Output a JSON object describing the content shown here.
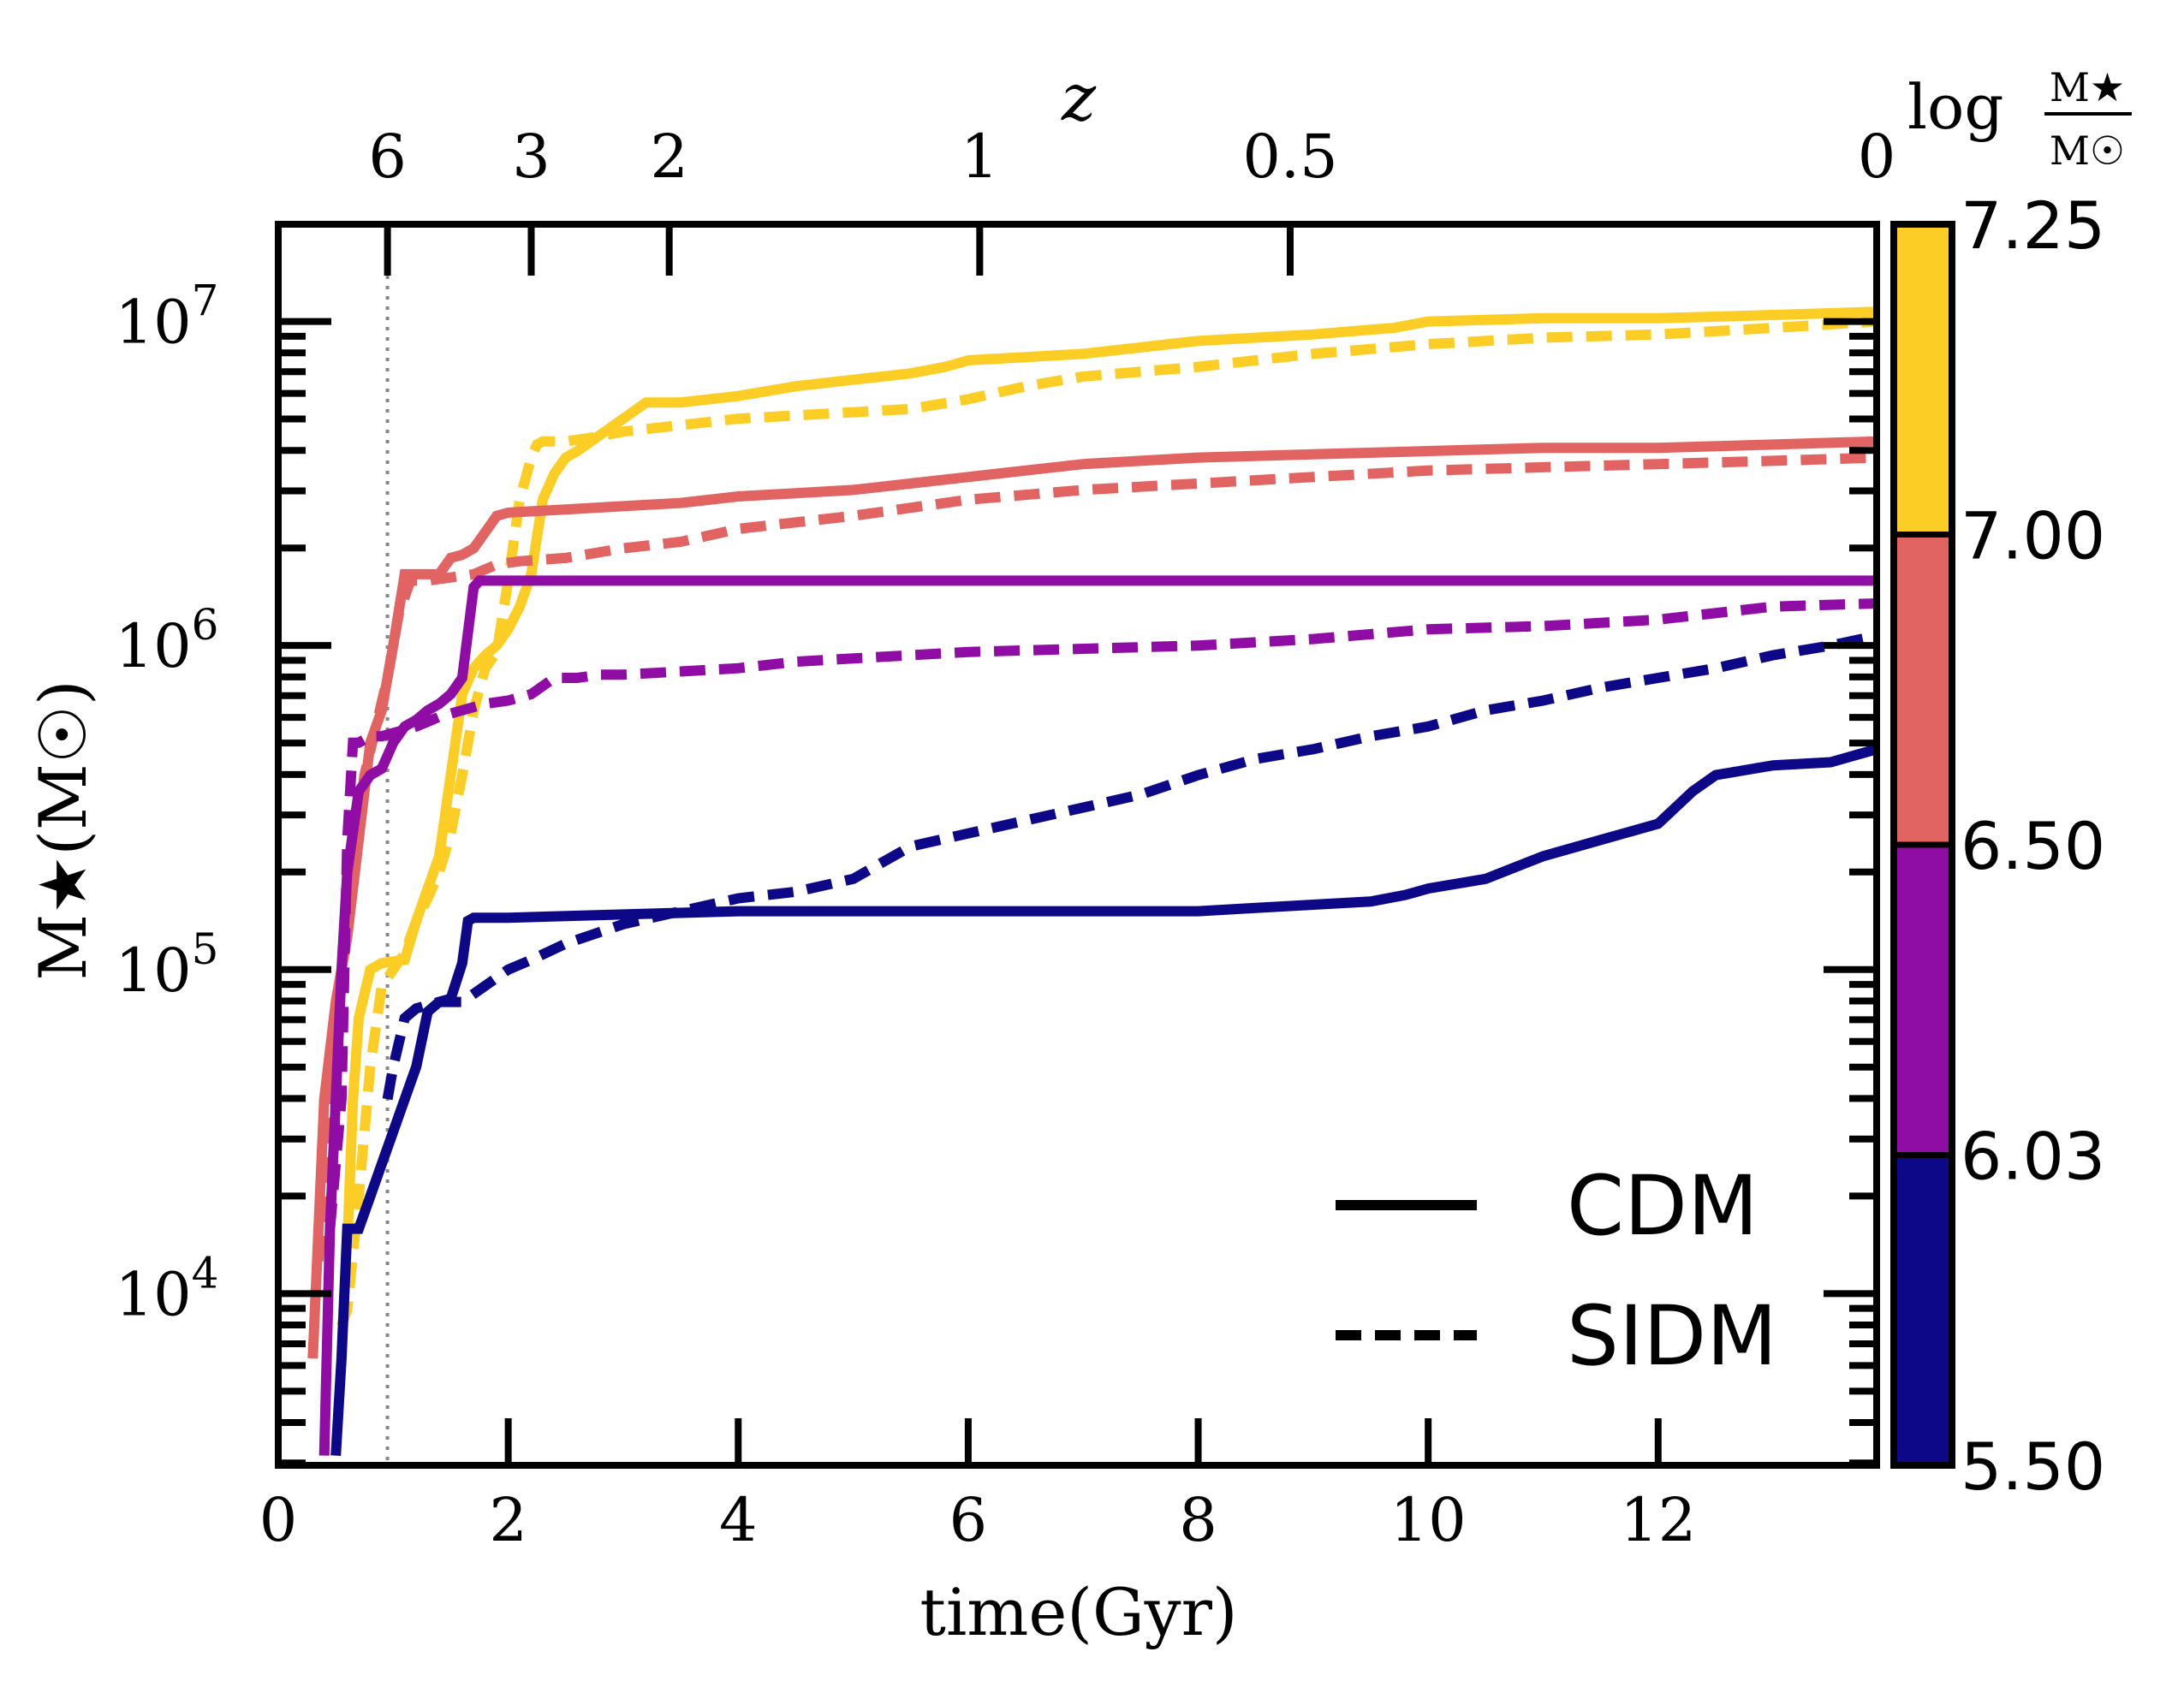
{
  "chart_data": {
    "type": "line",
    "xlabel": "time(Gyr)",
    "ylabel": "M★(M☉)",
    "top_axis_label": "z",
    "xlim": [
      0,
      13.9
    ],
    "ylim_log10": [
      3.47,
      7.3
    ],
    "y_scale": "log",
    "x_ticks": [
      0,
      2,
      4,
      6,
      8,
      10,
      12
    ],
    "x_tick_labels": [
      "0",
      "2",
      "4",
      "6",
      "8",
      "10",
      "12"
    ],
    "y_ticks_log10": [
      4,
      5,
      6,
      7
    ],
    "top_ticks": [
      {
        "label": "6",
        "time": 0.95
      },
      {
        "label": "3",
        "time": 2.2
      },
      {
        "label": "2",
        "time": 3.4
      },
      {
        "label": "1",
        "time": 6.1
      },
      {
        "label": "0.5",
        "time": 8.8
      },
      {
        "label": "0",
        "time": 13.9
      }
    ],
    "reionization_marker_time": 0.95,
    "legend": {
      "position": "lower-right",
      "entries": [
        {
          "label": "CDM",
          "style": "solid"
        },
        {
          "label": "SIDM",
          "style": "dashed"
        }
      ]
    },
    "colorbar": {
      "title": "log M★/M☉",
      "title_prefix": "log",
      "title_num": "M★",
      "title_den": "M☉",
      "tick_labels": [
        "7.25",
        "7.00",
        "6.50",
        "6.03",
        "5.50"
      ],
      "segments": [
        {
          "color": "#fcce25",
          "from": "7.00",
          "to": "7.25"
        },
        {
          "color": "#e16462",
          "from": "6.50",
          "to": "7.00"
        },
        {
          "color": "#8f0da4",
          "from": "6.03",
          "to": "6.50"
        },
        {
          "color": "#0d0887",
          "from": "5.50",
          "to": "6.03"
        }
      ]
    },
    "series": [
      {
        "name": "yellow CDM",
        "color": "#fcce25",
        "style": "solid",
        "t": [
          0.6,
          0.65,
          0.7,
          0.8,
          0.9,
          1.1,
          1.2,
          1.3,
          1.4,
          1.5,
          1.6,
          1.7,
          1.8,
          1.9,
          2.0,
          2.1,
          2.2,
          2.3,
          2.4,
          2.5,
          2.6,
          2.8,
          3.0,
          3.2,
          3.5,
          4.0,
          4.5,
          5.0,
          5.5,
          5.8,
          6.0,
          6.5,
          7.0,
          7.5,
          8.0,
          9.0,
          9.7,
          10.0,
          11.0,
          12.0,
          13.0,
          13.9
        ],
        "v": [
          4.15,
          4.6,
          4.85,
          5.0,
          5.02,
          5.03,
          5.15,
          5.25,
          5.35,
          5.6,
          5.85,
          5.93,
          5.97,
          6.0,
          6.05,
          6.12,
          6.22,
          6.45,
          6.53,
          6.58,
          6.6,
          6.65,
          6.7,
          6.75,
          6.75,
          6.77,
          6.8,
          6.82,
          6.84,
          6.86,
          6.88,
          6.89,
          6.9,
          6.92,
          6.94,
          6.96,
          6.98,
          7.0,
          7.01,
          7.01,
          7.02,
          7.03
        ]
      },
      {
        "name": "yellow SIDM",
        "color": "#fcce25",
        "style": "dashed",
        "t": [
          0.55,
          0.6,
          0.7,
          0.8,
          0.9,
          1.0,
          1.1,
          1.2,
          1.3,
          1.4,
          1.5,
          1.6,
          1.7,
          1.8,
          1.9,
          2.0,
          2.1,
          2.2,
          2.25,
          2.3,
          2.5,
          2.7,
          3.0,
          3.5,
          4.0,
          4.5,
          5.0,
          5.5,
          6.0,
          6.5,
          7.0,
          8.0,
          9.0,
          10.0,
          11.0,
          12.0,
          13.0,
          13.9
        ],
        "v": [
          3.9,
          3.95,
          4.3,
          4.7,
          4.95,
          5.0,
          5.05,
          5.15,
          5.22,
          5.3,
          5.42,
          5.6,
          5.8,
          5.93,
          5.98,
          6.2,
          6.45,
          6.58,
          6.62,
          6.63,
          6.63,
          6.64,
          6.66,
          6.68,
          6.7,
          6.71,
          6.72,
          6.73,
          6.76,
          6.8,
          6.83,
          6.86,
          6.9,
          6.93,
          6.95,
          6.96,
          6.98,
          7.0
        ]
      },
      {
        "name": "salmon CDM",
        "color": "#e16462",
        "style": "solid",
        "t": [
          0.3,
          0.4,
          0.5,
          0.6,
          0.7,
          0.8,
          0.9,
          1.0,
          1.1,
          1.2,
          1.4,
          1.5,
          1.6,
          1.7,
          1.8,
          1.9,
          2.0,
          2.5,
          3.0,
          3.5,
          4.0,
          4.5,
          5.0,
          5.5,
          6.0,
          6.5,
          7.0,
          7.5,
          8.0,
          9.0,
          10.0,
          11.0,
          12.0,
          13.0,
          13.9
        ],
        "v": [
          3.8,
          4.6,
          4.9,
          5.1,
          5.4,
          5.7,
          5.8,
          6.0,
          6.22,
          6.22,
          6.22,
          6.27,
          6.28,
          6.3,
          6.35,
          6.4,
          6.41,
          6.42,
          6.43,
          6.44,
          6.46,
          6.47,
          6.48,
          6.5,
          6.52,
          6.54,
          6.56,
          6.57,
          6.58,
          6.59,
          6.6,
          6.61,
          6.61,
          6.62,
          6.63
        ]
      },
      {
        "name": "salmon SIDM",
        "color": "#e16462",
        "style": "dashed",
        "t": [
          0.35,
          0.45,
          0.55,
          0.65,
          0.75,
          0.85,
          0.95,
          1.05,
          1.15,
          1.3,
          1.5,
          1.7,
          1.9,
          2.1,
          2.5,
          3.0,
          3.5,
          4.0,
          4.5,
          5.0,
          6.0,
          7.0,
          8.0,
          9.0,
          10.0,
          11.0,
          12.0,
          13.0,
          13.9
        ],
        "v": [
          4.1,
          4.6,
          5.0,
          5.3,
          5.6,
          5.75,
          5.9,
          6.1,
          6.2,
          6.2,
          6.21,
          6.22,
          6.25,
          6.26,
          6.27,
          6.3,
          6.32,
          6.36,
          6.38,
          6.4,
          6.45,
          6.48,
          6.5,
          6.52,
          6.54,
          6.55,
          6.56,
          6.57,
          6.58
        ]
      },
      {
        "name": "purple CDM",
        "color": "#8f0da4",
        "style": "solid",
        "t": [
          0.4,
          0.45,
          0.5,
          0.55,
          0.6,
          0.7,
          0.8,
          0.9,
          1.0,
          1.1,
          1.2,
          1.3,
          1.4,
          1.5,
          1.6,
          1.7,
          1.75,
          1.8,
          2.0,
          3.0,
          4.0,
          6.0,
          8.0,
          10.0,
          12.0,
          13.9
        ],
        "v": [
          3.5,
          4.2,
          4.6,
          5.0,
          5.3,
          5.55,
          5.6,
          5.62,
          5.7,
          5.75,
          5.77,
          5.8,
          5.82,
          5.85,
          5.9,
          6.18,
          6.2,
          6.2,
          6.2,
          6.2,
          6.2,
          6.2,
          6.2,
          6.2,
          6.2,
          6.2
        ]
      },
      {
        "name": "purple SIDM",
        "color": "#8f0da4",
        "style": "dashed",
        "t": [
          0.45,
          0.55,
          0.6,
          0.65,
          0.7,
          0.8,
          0.9,
          1.0,
          1.2,
          1.4,
          1.6,
          1.8,
          2.0,
          2.2,
          2.4,
          2.6,
          2.8,
          3.0,
          3.5,
          4.0,
          4.5,
          5.0,
          6.0,
          7.0,
          8.0,
          9.0,
          10.0,
          11.0,
          12.0,
          13.0,
          13.9
        ],
        "v": [
          4.2,
          4.6,
          5.4,
          5.7,
          5.7,
          5.72,
          5.72,
          5.73,
          5.75,
          5.78,
          5.8,
          5.82,
          5.83,
          5.85,
          5.9,
          5.9,
          5.91,
          5.91,
          5.92,
          5.93,
          5.95,
          5.96,
          5.98,
          5.99,
          6.0,
          6.02,
          6.05,
          6.06,
          6.08,
          6.12,
          6.13
        ]
      },
      {
        "name": "navy CDM",
        "color": "#0d0887",
        "style": "solid",
        "t": [
          0.5,
          0.55,
          0.6,
          0.65,
          0.7,
          0.8,
          0.9,
          1.0,
          1.1,
          1.2,
          1.3,
          1.4,
          1.5,
          1.6,
          1.65,
          1.7,
          2.0,
          3.0,
          4.0,
          5.0,
          6.0,
          7.0,
          8.0,
          8.5,
          9.0,
          9.5,
          9.8,
          10.0,
          10.5,
          11.0,
          11.5,
          12.0,
          12.3,
          12.5,
          13.0,
          13.5,
          13.9
        ],
        "v": [
          3.5,
          3.8,
          4.2,
          4.2,
          4.2,
          4.3,
          4.4,
          4.5,
          4.6,
          4.7,
          4.87,
          4.9,
          4.91,
          5.02,
          5.15,
          5.16,
          5.16,
          5.17,
          5.18,
          5.18,
          5.18,
          5.18,
          5.18,
          5.19,
          5.2,
          5.21,
          5.23,
          5.25,
          5.28,
          5.35,
          5.4,
          5.45,
          5.55,
          5.6,
          5.63,
          5.64,
          5.68
        ]
      },
      {
        "name": "navy SIDM",
        "color": "#0d0887",
        "style": "dashed",
        "t": [
          0.95,
          1.0,
          1.1,
          1.2,
          1.4,
          1.6,
          1.8,
          2.0,
          2.2,
          2.5,
          3.0,
          3.5,
          4.0,
          4.5,
          5.0,
          5.5,
          6.0,
          6.5,
          7.0,
          7.5,
          8.0,
          8.5,
          9.0,
          9.5,
          10.0,
          10.5,
          11.0,
          11.5,
          12.0,
          12.5,
          13.0,
          13.5,
          13.9
        ],
        "v": [
          4.6,
          4.7,
          4.85,
          4.88,
          4.9,
          4.9,
          4.95,
          5.0,
          5.03,
          5.08,
          5.14,
          5.18,
          5.22,
          5.24,
          5.28,
          5.38,
          5.42,
          5.46,
          5.5,
          5.54,
          5.6,
          5.65,
          5.68,
          5.72,
          5.75,
          5.8,
          5.83,
          5.87,
          5.9,
          5.93,
          5.97,
          6.0,
          6.03
        ]
      }
    ]
  }
}
